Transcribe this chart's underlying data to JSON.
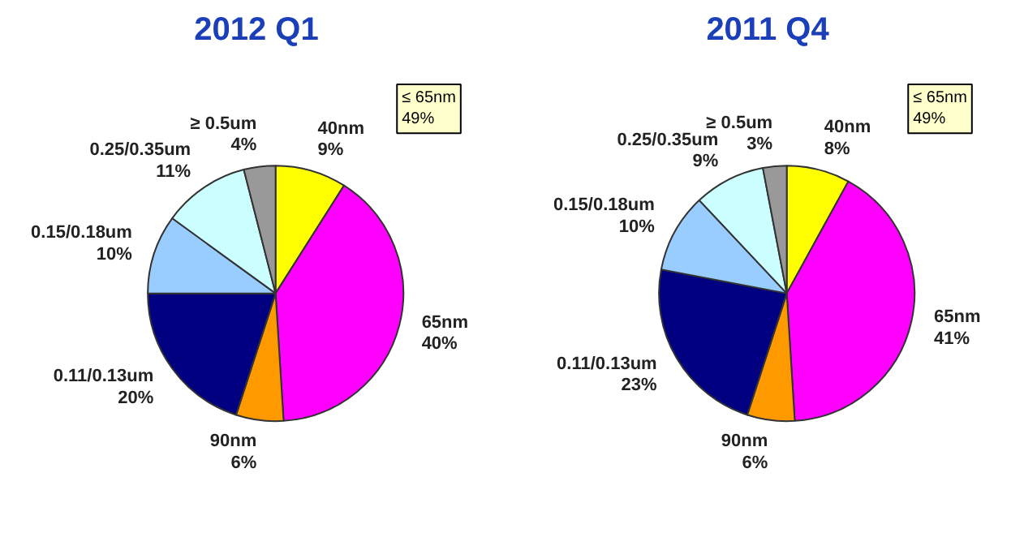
{
  "chart_data": [
    {
      "type": "pie",
      "title": "2012 Q1",
      "categories": [
        "40nm",
        "65nm",
        "90nm",
        "0.11/0.13um",
        "0.15/0.18um",
        "0.25/0.35um",
        "≥ 0.5um"
      ],
      "values": [
        9,
        40,
        6,
        20,
        10,
        11,
        4
      ],
      "value_labels": [
        "9%",
        "40%",
        "6%",
        "20%",
        "10%",
        "11%",
        "4%"
      ],
      "colors": [
        "#ffff00",
        "#ff00ff",
        "#ff9900",
        "#000080",
        "#99ccff",
        "#ccffff",
        "#999999"
      ],
      "annotations": [
        "≤ 65nm\n49%"
      ]
    },
    {
      "type": "pie",
      "title": "2011 Q4",
      "categories": [
        "40nm",
        "65nm",
        "90nm",
        "0.11/0.13um",
        "0.15/0.18um",
        "0.25/0.35um",
        "≥ 0.5um"
      ],
      "values": [
        8,
        41,
        6,
        23,
        10,
        9,
        3
      ],
      "value_labels": [
        "8%",
        "41%",
        "6%",
        "23%",
        "10%",
        "9%",
        "3%"
      ],
      "colors": [
        "#ffff00",
        "#ff00ff",
        "#ff9900",
        "#000080",
        "#99ccff",
        "#ccffff",
        "#999999"
      ],
      "annotations": [
        "≤ 65nm\n49%"
      ]
    }
  ]
}
